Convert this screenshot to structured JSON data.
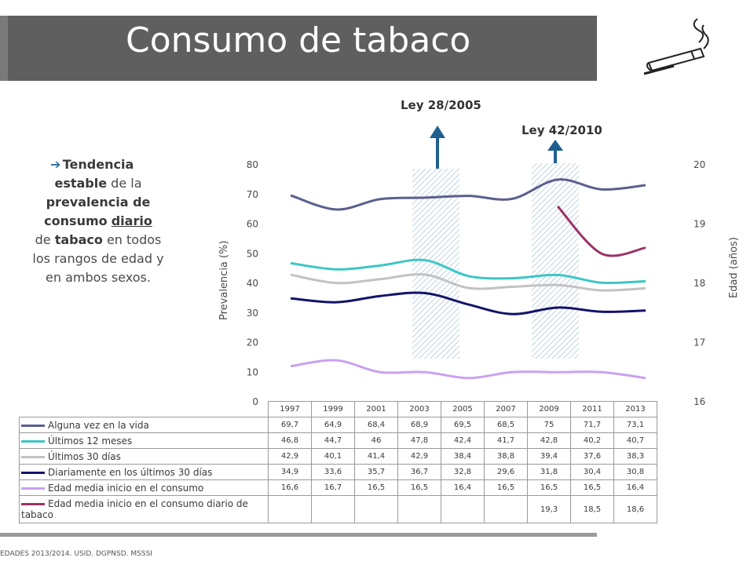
{
  "title": "Consumo de tabaco",
  "laws": [
    {
      "label": "Ley 28/2005"
    },
    {
      "label": "Ley 42/2010"
    }
  ],
  "side": {
    "w1": "Tendencia",
    "w2": "estable",
    "w3": " de la ",
    "w4": "prevalencia de consumo",
    "w5": "diario",
    "w6": " de ",
    "w7": "tabaco",
    "w8": " en todos los rangos de edad y en ambos sexos."
  },
  "source": "EDADES 2013/2014. USID. DGPNSD. MSSSI",
  "chart_data": {
    "type": "line",
    "ylabel": "Prevalencia (%)",
    "ylabel_right": "Edad (años)",
    "ylim": [
      0,
      80
    ],
    "ylim_right": [
      16,
      20
    ],
    "yticks": [
      "80",
      "70",
      "60",
      "50",
      "40",
      "30",
      "20",
      "10",
      "0"
    ],
    "yticks_right": [
      "20",
      "19",
      "18",
      "17",
      "16"
    ],
    "categories": [
      "1997",
      "1999",
      "2001",
      "2003",
      "2005",
      "2007",
      "2009",
      "2011",
      "2013"
    ],
    "series": [
      {
        "name": "Alguna vez en la vida",
        "color": "#5b5f8f",
        "axis": "left",
        "values": [
          69.7,
          64.9,
          68.4,
          68.9,
          69.5,
          68.5,
          75,
          71.7,
          73.1
        ],
        "labels": [
          "69,7",
          "64,9",
          "68,4",
          "68,9",
          "69,5",
          "68,5",
          "75",
          "71,7",
          "73,1"
        ]
      },
      {
        "name": "Últimos 12 meses",
        "color": "#3cc6c6",
        "axis": "left",
        "values": [
          46.8,
          44.7,
          46,
          47.8,
          42.4,
          41.7,
          42.8,
          40.2,
          40.7
        ],
        "labels": [
          "46,8",
          "44,7",
          "46",
          "47,8",
          "42,4",
          "41,7",
          "42,8",
          "40,2",
          "40,7"
        ]
      },
      {
        "name": "Últimos 30 días",
        "color": "#c2c2c2",
        "axis": "left",
        "values": [
          42.9,
          40.1,
          41.4,
          42.9,
          38.4,
          38.8,
          39.4,
          37.6,
          38.3
        ],
        "labels": [
          "42,9",
          "40,1",
          "41,4",
          "42,9",
          "38,4",
          "38,8",
          "39,4",
          "37,6",
          "38,3"
        ]
      },
      {
        "name": "Diariamente en los últimos 30 días",
        "color": "#13136a",
        "axis": "left",
        "values": [
          34.9,
          33.6,
          35.7,
          36.7,
          32.8,
          29.6,
          31.8,
          30.4,
          30.8
        ],
        "labels": [
          "34,9",
          "33,6",
          "35,7",
          "36,7",
          "32,8",
          "29,6",
          "31,8",
          "30,4",
          "30,8"
        ]
      },
      {
        "name": "Edad media inicio en el consumo",
        "color": "#c9a1f0",
        "axis": "right",
        "values": [
          16.6,
          16.7,
          16.5,
          16.5,
          16.4,
          16.5,
          16.5,
          16.5,
          16.4
        ],
        "labels": [
          "16,6",
          "16,7",
          "16,5",
          "16,5",
          "16,4",
          "16,5",
          "16,5",
          "16,5",
          "16,4"
        ]
      },
      {
        "name": "Edad media inicio en el consumo diario de tabaco",
        "color": "#9a3366",
        "axis": "right",
        "values": [
          null,
          null,
          null,
          null,
          null,
          null,
          19.3,
          18.5,
          18.6
        ],
        "labels": [
          "",
          "",
          "",
          "",
          "",
          "",
          "19,3",
          "18,5",
          "18,6"
        ]
      }
    ],
    "highlight_regions": [
      "2003",
      "2009"
    ]
  }
}
